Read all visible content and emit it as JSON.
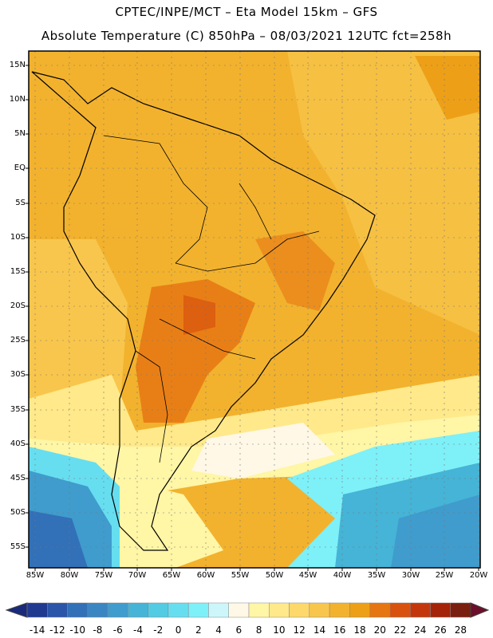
{
  "title_line1": "CPTEC/INPE/MCT –   Eta Model 15km – GFS",
  "title_line2": "Absolute Temperature (C) 850hPa – 08/03/2021 12UTC fct=258h",
  "latitude_labels": [
    "15N",
    "10N",
    "5N",
    "EQ",
    "5S",
    "10S",
    "15S",
    "20S",
    "25S",
    "30S",
    "35S",
    "40S",
    "45S",
    "50S",
    "55S"
  ],
  "longitude_labels": [
    "85W",
    "80W",
    "75W",
    "70W",
    "65W",
    "60W",
    "55W",
    "50W",
    "45W",
    "40W",
    "35W",
    "30W",
    "25W",
    "20W"
  ],
  "colorbar": {
    "labels": [
      "-14",
      "-12",
      "-10",
      "-8",
      "-6",
      "-4",
      "-2",
      "0",
      "2",
      "4",
      "6",
      "8",
      "10",
      "12",
      "14",
      "16",
      "18",
      "20",
      "22",
      "24",
      "26",
      "28"
    ],
    "colors": [
      "#1f3a8f",
      "#2a55a8",
      "#3270b8",
      "#3a86c2",
      "#3f9ccd",
      "#45b4d6",
      "#52cbe3",
      "#66def0",
      "#7ef0f8",
      "#cdf6fb",
      "#fff8e6",
      "#fff6a6",
      "#ffe98a",
      "#fdd86a",
      "#f8c64c",
      "#f2b22e",
      "#eda017",
      "#e67612",
      "#d9510e",
      "#c3360b",
      "#a52308",
      "#7a1e10"
    ],
    "under_color": "#1a2a7a",
    "over_color": "#6b0f2a"
  }
}
